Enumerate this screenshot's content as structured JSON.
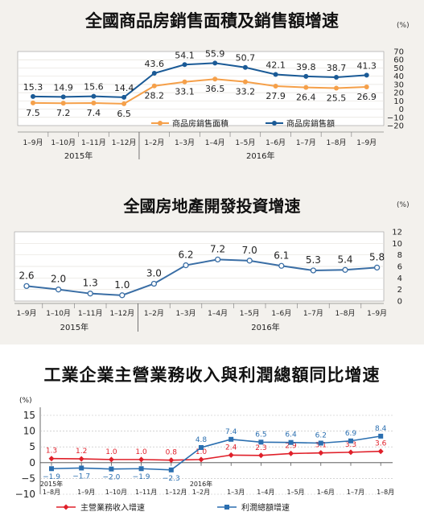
{
  "chart_data": [
    {
      "type": "line",
      "title": "全國商品房銷售面積及銷售額增速",
      "unit": "(%)",
      "categories": [
        "1–9月",
        "1–10月",
        "1–11月",
        "1–12月",
        "1–2月",
        "1–3月",
        "1–4月",
        "1–5月",
        "1–6月",
        "1–7月",
        "1–8月",
        "1–9月"
      ],
      "year_groups": [
        {
          "label": "2015年",
          "start": 0,
          "end": 3
        },
        {
          "label": "2016年",
          "start": 4,
          "end": 11
        }
      ],
      "ylim": [
        -20,
        70
      ],
      "yticks": [
        70,
        60,
        50,
        40,
        30,
        20,
        10,
        0,
        -10,
        -20
      ],
      "series": [
        {
          "name": "商品房銷售面積",
          "color": "#f5a04a",
          "values": [
            7.5,
            7.2,
            7.4,
            6.5,
            28.2,
            33.1,
            36.5,
            33.2,
            27.9,
            26.4,
            25.5,
            26.9
          ]
        },
        {
          "name": "商品房銷售額",
          "color": "#1a5a96",
          "values": [
            15.3,
            14.9,
            15.6,
            14.4,
            43.6,
            54.1,
            55.9,
            50.7,
            42.1,
            39.8,
            38.7,
            41.3
          ]
        }
      ],
      "legend": "bottom-right"
    },
    {
      "type": "line",
      "title": "全國房地產開發投資增速",
      "unit": "(%)",
      "categories": [
        "1–9月",
        "1–10月",
        "1–11月",
        "1–12月",
        "1–2月",
        "1–3月",
        "1–4月",
        "1–5月",
        "1–6月",
        "1–7月",
        "1–8月",
        "1–9月"
      ],
      "year_groups": [
        {
          "label": "2015年",
          "start": 0,
          "end": 3
        },
        {
          "label": "2016年",
          "start": 4,
          "end": 11
        }
      ],
      "ylim": [
        0,
        12
      ],
      "yticks": [
        12,
        10,
        8,
        6,
        4,
        2,
        0
      ],
      "series": [
        {
          "color": "#3a6ea5",
          "values": [
            2.6,
            2.0,
            1.3,
            1.0,
            3.0,
            6.2,
            7.2,
            7.0,
            6.1,
            5.3,
            5.4,
            5.8
          ]
        }
      ]
    },
    {
      "type": "line",
      "title": "工業企業主營業務收入與利潤總額同比增速",
      "unit": "(%)",
      "categories": [
        "1–8月",
        "1–9月",
        "1–10月",
        "1–11月",
        "1–12月",
        "1–2月",
        "1–3月",
        "1–4月",
        "1–5月",
        "1–6月",
        "1–7月",
        "1–8月"
      ],
      "category_prefixes": [
        "2015年",
        "",
        "",
        "",
        "",
        "2016年",
        "",
        "",
        "",
        "",
        "",
        ""
      ],
      "ylim": [
        -10,
        15
      ],
      "yticks": [
        15,
        10,
        5,
        0,
        -5,
        -10
      ],
      "series": [
        {
          "name": "主營業務收入增速",
          "color": "#e0202a",
          "marker": "diamond",
          "values": [
            1.3,
            1.2,
            1.0,
            1.0,
            0.8,
            1.0,
            2.4,
            2.3,
            2.9,
            3.1,
            3.3,
            3.6
          ]
        },
        {
          "name": "利潤總額增速",
          "color": "#2b6fb0",
          "marker": "square",
          "values": [
            -1.9,
            -1.7,
            -2.0,
            -1.9,
            -2.3,
            4.8,
            7.4,
            6.5,
            6.4,
            6.2,
            6.9,
            8.4
          ]
        }
      ],
      "legend": "bottom"
    }
  ]
}
